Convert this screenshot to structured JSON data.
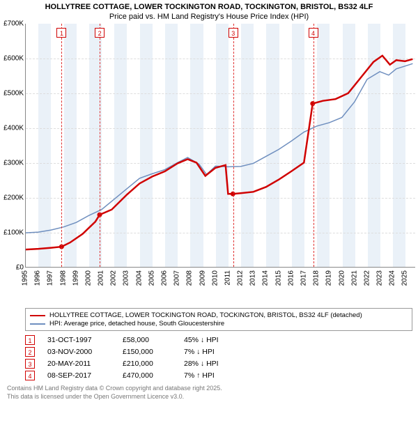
{
  "title": "HOLLYTREE COTTAGE, LOWER TOCKINGTON ROAD, TOCKINGTON, BRISTOL, BS32 4LF",
  "subtitle": "Price paid vs. HM Land Registry's House Price Index (HPI)",
  "chart": {
    "type": "line",
    "background_color": "#ffffff",
    "year_band_color": "#eaf1f8",
    "grid_color": "#dddddd",
    "x_start": 1995,
    "x_end": 2025.8,
    "xticks": [
      1995,
      1996,
      1997,
      1998,
      1999,
      2000,
      2001,
      2002,
      2003,
      2004,
      2005,
      2006,
      2007,
      2008,
      2009,
      2010,
      2011,
      2012,
      2013,
      2014,
      2015,
      2016,
      2017,
      2018,
      2019,
      2020,
      2021,
      2022,
      2023,
      2024,
      2025
    ],
    "ylim": [
      0,
      700000
    ],
    "yticks": [
      {
        "v": 0,
        "label": "£0"
      },
      {
        "v": 100000,
        "label": "£100K"
      },
      {
        "v": 200000,
        "label": "£200K"
      },
      {
        "v": 300000,
        "label": "£300K"
      },
      {
        "v": 400000,
        "label": "£400K"
      },
      {
        "v": 500000,
        "label": "£500K"
      },
      {
        "v": 600000,
        "label": "£600K"
      },
      {
        "v": 700000,
        "label": "£700K"
      }
    ],
    "series": [
      {
        "name": "paid",
        "label": "HOLLYTREE COTTAGE, LOWER TOCKINGTON ROAD, TOCKINGTON, BRISTOL, BS32 4LF (detached)",
        "color": "#d00000",
        "width": 2.5,
        "data": [
          [
            1995.0,
            50000
          ],
          [
            1996.0,
            52000
          ],
          [
            1997.0,
            55000
          ],
          [
            1997.83,
            58000
          ],
          [
            1998.5,
            70000
          ],
          [
            1999.5,
            95000
          ],
          [
            2000.5,
            130000
          ],
          [
            2000.84,
            150000
          ],
          [
            2001.8,
            165000
          ],
          [
            2003.0,
            208000
          ],
          [
            2004.0,
            240000
          ],
          [
            2005.0,
            260000
          ],
          [
            2006.0,
            275000
          ],
          [
            2007.0,
            298000
          ],
          [
            2007.8,
            310000
          ],
          [
            2008.5,
            300000
          ],
          [
            2009.2,
            262000
          ],
          [
            2010.0,
            285000
          ],
          [
            2010.8,
            293000
          ],
          [
            2011.0,
            210000
          ],
          [
            2011.38,
            210000
          ],
          [
            2012.0,
            212000
          ],
          [
            2013.0,
            216000
          ],
          [
            2014.0,
            230000
          ],
          [
            2015.0,
            251000
          ],
          [
            2016.0,
            275000
          ],
          [
            2017.0,
            300000
          ],
          [
            2017.69,
            470000
          ],
          [
            2018.5,
            478000
          ],
          [
            2019.5,
            483000
          ],
          [
            2020.5,
            500000
          ],
          [
            2021.5,
            545000
          ],
          [
            2022.5,
            590000
          ],
          [
            2023.2,
            608000
          ],
          [
            2023.8,
            582000
          ],
          [
            2024.3,
            595000
          ],
          [
            2025.0,
            592000
          ],
          [
            2025.6,
            598000
          ]
        ]
      },
      {
        "name": "hpi",
        "label": "HPI: Average price, detached house, South Gloucestershire",
        "color": "#6f8fbf",
        "width": 1.5,
        "data": [
          [
            1995.0,
            98000
          ],
          [
            1996.0,
            100000
          ],
          [
            1997.0,
            106000
          ],
          [
            1998.0,
            115000
          ],
          [
            1999.0,
            128000
          ],
          [
            2000.0,
            148000
          ],
          [
            2001.0,
            165000
          ],
          [
            2002.0,
            195000
          ],
          [
            2003.0,
            225000
          ],
          [
            2004.0,
            255000
          ],
          [
            2005.0,
            268000
          ],
          [
            2006.0,
            280000
          ],
          [
            2007.0,
            300000
          ],
          [
            2007.8,
            315000
          ],
          [
            2008.7,
            296000
          ],
          [
            2009.3,
            266000
          ],
          [
            2010.0,
            290000
          ],
          [
            2011.0,
            288000
          ],
          [
            2012.0,
            289000
          ],
          [
            2013.0,
            298000
          ],
          [
            2014.0,
            318000
          ],
          [
            2015.0,
            338000
          ],
          [
            2016.0,
            362000
          ],
          [
            2017.0,
            388000
          ],
          [
            2018.0,
            405000
          ],
          [
            2019.0,
            415000
          ],
          [
            2020.0,
            430000
          ],
          [
            2021.0,
            475000
          ],
          [
            2022.0,
            540000
          ],
          [
            2023.0,
            562000
          ],
          [
            2023.7,
            552000
          ],
          [
            2024.3,
            570000
          ],
          [
            2025.0,
            578000
          ],
          [
            2025.6,
            585000
          ]
        ]
      }
    ],
    "markers": [
      {
        "n": "1",
        "x": 1997.83,
        "y": 58000
      },
      {
        "n": "2",
        "x": 2000.84,
        "y": 150000
      },
      {
        "n": "3",
        "x": 2011.38,
        "y": 210000
      },
      {
        "n": "4",
        "x": 2017.69,
        "y": 470000
      }
    ]
  },
  "sales": [
    {
      "n": "1",
      "date": "31-OCT-1997",
      "price": "£58,000",
      "delta": "45% ↓ HPI"
    },
    {
      "n": "2",
      "date": "03-NOV-2000",
      "price": "£150,000",
      "delta": "7% ↓ HPI"
    },
    {
      "n": "3",
      "date": "20-MAY-2011",
      "price": "£210,000",
      "delta": "28% ↓ HPI"
    },
    {
      "n": "4",
      "date": "08-SEP-2017",
      "price": "£470,000",
      "delta": "7% ↑ HPI"
    }
  ],
  "footer1": "Contains HM Land Registry data © Crown copyright and database right 2025.",
  "footer2": "This data is licensed under the Open Government Licence v3.0."
}
